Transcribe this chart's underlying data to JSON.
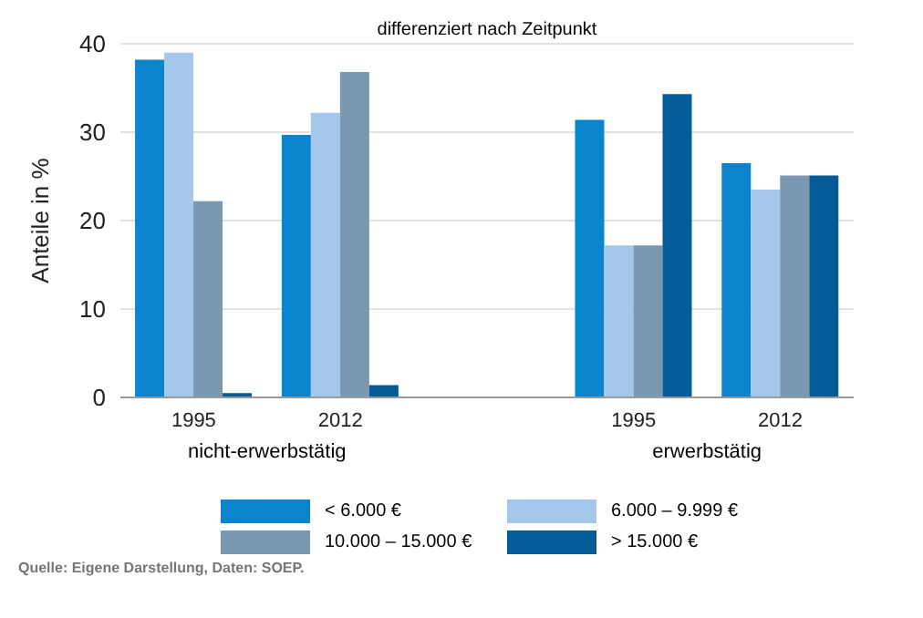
{
  "chart_data": {
    "type": "bar",
    "title": "differenziert nach Zeitpunkt",
    "ylabel": "Anteile in %",
    "categories": [
      "1995",
      "2012",
      null,
      "1995",
      "2012"
    ],
    "series": [
      {
        "name": "< 6.000 €",
        "color": "#0a84cc",
        "values": [
          38.2,
          29.7,
          null,
          31.4,
          26.5
        ]
      },
      {
        "name": "6.000 – 9.999 €",
        "color": "#a3c8eb",
        "values": [
          39.0,
          32.2,
          null,
          17.2,
          23.5
        ]
      },
      {
        "name": "10.000 – 15.000 €",
        "color": "#7a98b1",
        "values": [
          22.2,
          36.8,
          null,
          17.2,
          25.1
        ]
      },
      {
        "name": "> 15.000 €",
        "color": "#035c96",
        "values": [
          0.5,
          1.4,
          null,
          34.3,
          25.1
        ]
      }
    ],
    "ylim": [
      0,
      40
    ],
    "yticks": [
      0,
      10,
      20,
      30,
      40
    ],
    "grid": "y",
    "legend": "bottom",
    "annotations": [
      "nicht-erwerbstätig",
      "erwerbstätig",
      "Quelle: Eigene Darstellung, Daten: SOEP."
    ]
  }
}
